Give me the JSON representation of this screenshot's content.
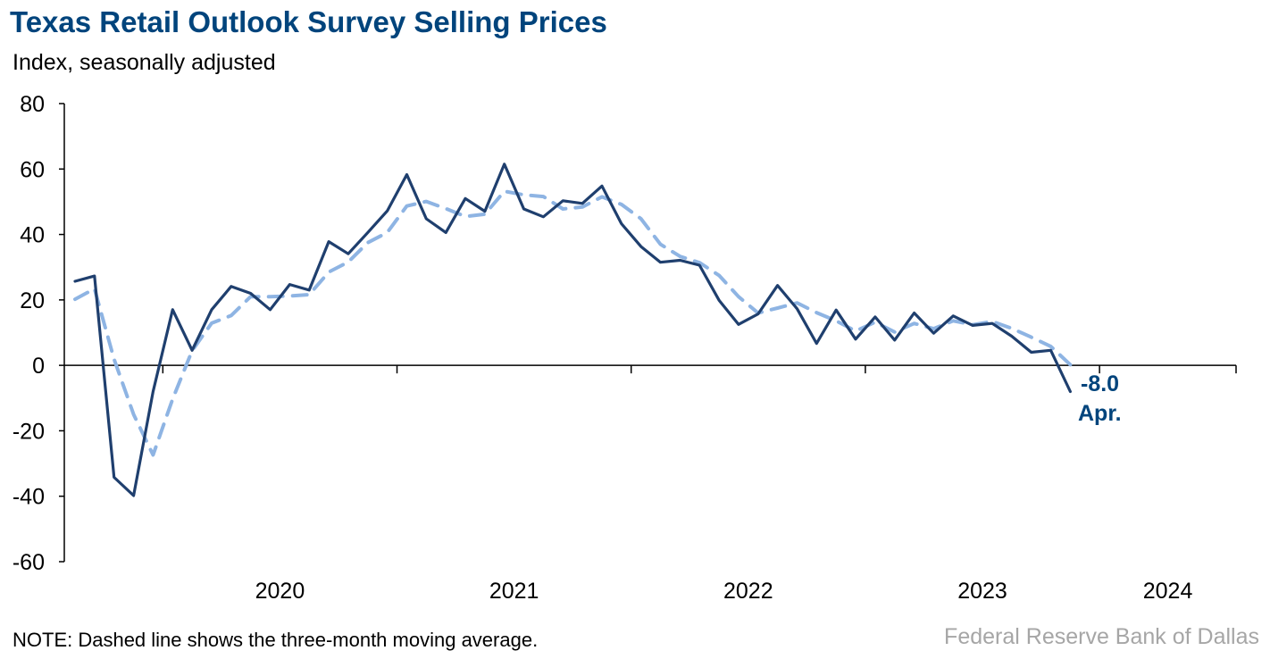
{
  "chart_data": {
    "type": "line",
    "title": "Texas Retail Outlook Survey Selling Prices",
    "subtitle": "Index, seasonally adjusted",
    "note": "NOTE: Dashed line shows the three-month moving average.",
    "source": "Federal Reserve Bank of Dallas",
    "x_start": "2019-08",
    "x_end": "2024-12",
    "ylim": [
      -60,
      80
    ],
    "yticks": [
      -60,
      -40,
      -20,
      0,
      20,
      40,
      60,
      80
    ],
    "year_labels": [
      "2020",
      "2021",
      "2022",
      "2023",
      "2024"
    ],
    "grid": false,
    "series": [
      {
        "style": "solid",
        "color": "#1f3f6e",
        "points": [
          [
            "2019-08",
            25.7
          ],
          [
            "2019-09",
            27.3
          ],
          [
            "2019-10",
            -34.2
          ],
          [
            "2019-11",
            -39.8
          ],
          [
            "2019-12",
            -8.0
          ],
          [
            "2020-01",
            17.0
          ],
          [
            "2020-02",
            4.6
          ],
          [
            "2020-03",
            17.0
          ],
          [
            "2020-04",
            24.1
          ],
          [
            "2020-05",
            22.0
          ],
          [
            "2020-06",
            17.0
          ],
          [
            "2020-07",
            24.7
          ],
          [
            "2020-08",
            23.0
          ],
          [
            "2020-09",
            37.8
          ],
          [
            "2020-10",
            34.1
          ],
          [
            "2020-11",
            40.6
          ],
          [
            "2020-12",
            47.2
          ],
          [
            "2021-01",
            58.3
          ],
          [
            "2021-02",
            44.8
          ],
          [
            "2021-03",
            40.6
          ],
          [
            "2021-04",
            51.0
          ],
          [
            "2021-05",
            47.1
          ],
          [
            "2021-06",
            61.5
          ],
          [
            "2021-07",
            47.8
          ],
          [
            "2021-08",
            45.4
          ],
          [
            "2021-09",
            50.3
          ],
          [
            "2021-10",
            49.5
          ],
          [
            "2021-11",
            54.8
          ],
          [
            "2021-12",
            43.3
          ],
          [
            "2022-01",
            36.3
          ],
          [
            "2022-02",
            31.5
          ],
          [
            "2022-03",
            32.1
          ],
          [
            "2022-04",
            30.6
          ],
          [
            "2022-05",
            19.9
          ],
          [
            "2022-06",
            12.5
          ],
          [
            "2022-07",
            15.7
          ],
          [
            "2022-08",
            24.4
          ],
          [
            "2022-09",
            17.3
          ],
          [
            "2022-10",
            6.7
          ],
          [
            "2022-11",
            16.9
          ],
          [
            "2022-12",
            8.0
          ],
          [
            "2023-01",
            14.8
          ],
          [
            "2023-02",
            7.7
          ],
          [
            "2023-03",
            16.0
          ],
          [
            "2023-04",
            9.8
          ],
          [
            "2023-05",
            15.1
          ],
          [
            "2023-06",
            12.2
          ],
          [
            "2023-07",
            12.8
          ],
          [
            "2023-08",
            8.9
          ],
          [
            "2023-09",
            4.0
          ],
          [
            "2023-10",
            4.6
          ],
          [
            "2023-11",
            -8.0
          ]
        ]
      },
      {
        "style": "dashed",
        "color": "#8eb4e3",
        "points": [
          [
            "2019-08",
            20.2
          ],
          [
            "2019-09",
            23.4
          ],
          [
            "2019-10",
            1.9
          ],
          [
            "2019-11",
            -15.0
          ],
          [
            "2019-12",
            -27.4
          ],
          [
            "2020-01",
            -10.3
          ],
          [
            "2020-02",
            4.5
          ],
          [
            "2020-03",
            12.9
          ],
          [
            "2020-04",
            15.2
          ],
          [
            "2020-05",
            21.0
          ],
          [
            "2020-06",
            21.0
          ],
          [
            "2020-07",
            21.2
          ],
          [
            "2020-08",
            21.6
          ],
          [
            "2020-09",
            28.5
          ],
          [
            "2020-10",
            31.6
          ],
          [
            "2020-11",
            37.5
          ],
          [
            "2020-12",
            40.6
          ],
          [
            "2021-01",
            48.7
          ],
          [
            "2021-02",
            50.1
          ],
          [
            "2021-03",
            47.9
          ],
          [
            "2021-04",
            45.5
          ],
          [
            "2021-05",
            46.2
          ],
          [
            "2021-06",
            53.2
          ],
          [
            "2021-07",
            52.1
          ],
          [
            "2021-08",
            51.6
          ],
          [
            "2021-09",
            47.8
          ],
          [
            "2021-10",
            48.4
          ],
          [
            "2021-11",
            51.5
          ],
          [
            "2021-12",
            49.2
          ],
          [
            "2022-01",
            44.8
          ],
          [
            "2022-02",
            37.0
          ],
          [
            "2022-03",
            33.3
          ],
          [
            "2022-04",
            31.4
          ],
          [
            "2022-05",
            27.5
          ],
          [
            "2022-06",
            21.0
          ],
          [
            "2022-07",
            16.0
          ],
          [
            "2022-08",
            17.5
          ],
          [
            "2022-09",
            19.1
          ],
          [
            "2022-10",
            16.1
          ],
          [
            "2022-11",
            13.6
          ],
          [
            "2022-12",
            10.5
          ],
          [
            "2023-01",
            13.2
          ],
          [
            "2023-02",
            10.2
          ],
          [
            "2023-03",
            12.8
          ],
          [
            "2023-04",
            11.2
          ],
          [
            "2023-05",
            13.6
          ],
          [
            "2023-06",
            12.4
          ],
          [
            "2023-07",
            13.4
          ],
          [
            "2023-08",
            11.3
          ],
          [
            "2023-09",
            8.6
          ],
          [
            "2023-10",
            5.8
          ],
          [
            "2023-11",
            0.2
          ]
        ]
      }
    ],
    "annotation": {
      "value": "-8.0",
      "label": "Apr."
    }
  }
}
